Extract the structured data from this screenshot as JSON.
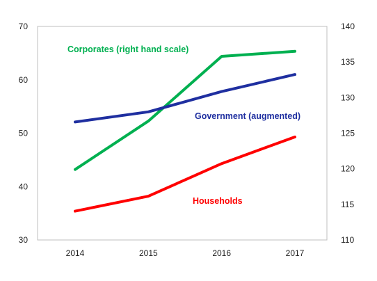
{
  "chart_data": {
    "type": "line",
    "categories": [
      "2014",
      "2015",
      "2016",
      "2017"
    ],
    "title": "",
    "xlabel": "",
    "ylabel": "",
    "y_left": {
      "range": [
        30,
        70
      ],
      "ticks": [
        "30",
        "40",
        "50",
        "60",
        "70"
      ]
    },
    "y_right": {
      "range": [
        110,
        140
      ],
      "ticks": [
        "110",
        "115",
        "120",
        "125",
        "130",
        "135",
        "140"
      ]
    },
    "grid": false,
    "legend": "inline labels",
    "series": [
      {
        "name": "Corporates (right hand scale)",
        "axis": "right",
        "color": "#00b050",
        "values": [
          119.9,
          126.7,
          135.8,
          136.5
        ]
      },
      {
        "name": "Government (augmented)",
        "axis": "left",
        "color": "#1f2fa0",
        "values": [
          52.1,
          54.0,
          57.8,
          61.0
        ]
      },
      {
        "name": "Households",
        "axis": "left",
        "color": "#ff0000",
        "values": [
          35.4,
          38.2,
          44.3,
          49.3
        ]
      }
    ]
  }
}
